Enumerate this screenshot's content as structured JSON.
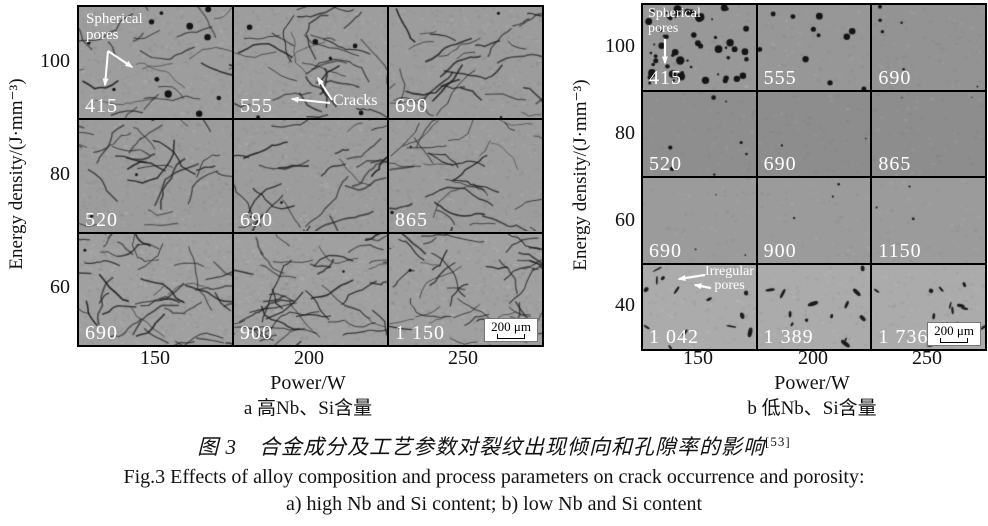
{
  "figure": {
    "caption_zh": "图 3　合金成分及工艺参数对裂纹出现倾向和孔隙率的影响",
    "caption_zh_ref": "[53]",
    "caption_en_line1": "Fig.3 Effects of alloy composition and process parameters on crack occurrence and porosity:",
    "caption_en_line2": "a) high Nb and Si content; b) low Nb and Si content"
  },
  "colors": {
    "grid_line": "#000000",
    "cell_label_text": "#ffffff",
    "annotation_text": "#ffffff",
    "micrograph_gray": "#9a9a9a"
  },
  "panel_a": {
    "y_label": "Energy density/(J·mm⁻³)",
    "x_label": "Power/W",
    "caption": "a 高Nb、Si含量",
    "y_ticks": [
      "100",
      "80",
      "60"
    ],
    "x_ticks": [
      "150",
      "200",
      "250"
    ],
    "scale_bar": "200 μm",
    "annotations": {
      "spherical_pores": "Spherical\npores",
      "cracks": "Cracks"
    },
    "cells": [
      {
        "label": "415",
        "texture": "cracks-pores-dense"
      },
      {
        "label": "555",
        "texture": "cracks-pores"
      },
      {
        "label": "690",
        "texture": "cracks"
      },
      {
        "label": "520",
        "texture": "cracks"
      },
      {
        "label": "690",
        "texture": "cracks"
      },
      {
        "label": "865",
        "texture": "cracks"
      },
      {
        "label": "690",
        "texture": "cracks-dense"
      },
      {
        "label": "900",
        "texture": "cracks-dense"
      },
      {
        "label": "1 150",
        "texture": "cracks-dense"
      }
    ]
  },
  "panel_b": {
    "y_label": "Energy density/(J·mm⁻³)",
    "x_label": "Power/W",
    "caption": "b 低Nb、Si含量",
    "y_ticks": [
      "100",
      "80",
      "60",
      "40"
    ],
    "x_ticks": [
      "150",
      "200",
      "250"
    ],
    "scale_bar": "200 μm",
    "annotations": {
      "spherical_pores": "Spherical\npores",
      "irregular_pores": "Irregular\npores"
    },
    "cells": [
      {
        "label": "415",
        "texture": "pores-dense"
      },
      {
        "label": "555",
        "texture": "pores-medium"
      },
      {
        "label": "690",
        "texture": "pores-sparse"
      },
      {
        "label": "520",
        "texture": "pores-sparse-dark"
      },
      {
        "label": "690",
        "texture": "smooth-dark"
      },
      {
        "label": "865",
        "texture": "smooth-dark"
      },
      {
        "label": "690",
        "texture": "smooth"
      },
      {
        "label": "900",
        "texture": "smooth"
      },
      {
        "label": "1150",
        "texture": "smooth"
      },
      {
        "label": "1 042",
        "texture": "irregular-pores"
      },
      {
        "label": "1 389",
        "texture": "irregular-pores"
      },
      {
        "label": "1 736",
        "texture": "irregular-pores"
      }
    ]
  }
}
